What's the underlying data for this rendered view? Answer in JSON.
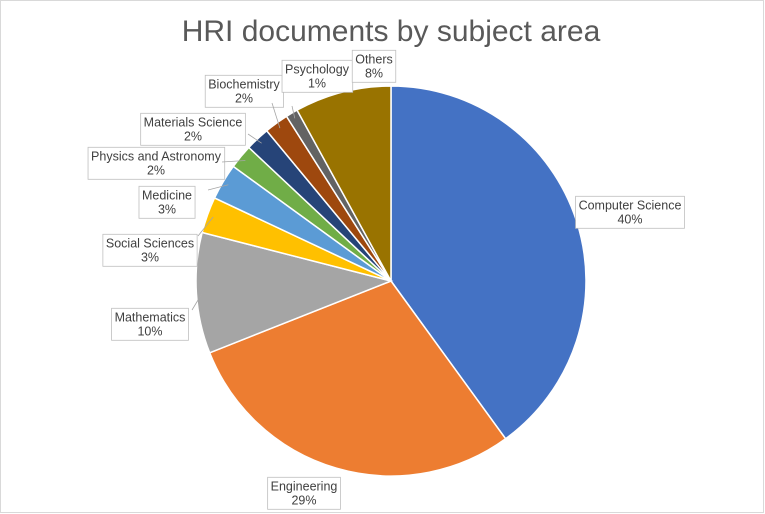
{
  "chart_data": {
    "type": "pie",
    "title": "HRI documents by subject area",
    "categories": [
      "Computer Science",
      "Engineering",
      "Mathematics",
      "Social Sciences",
      "Medicine",
      "Physics and Astronomy",
      "Materials Science",
      "Biochemistry",
      "Psychology",
      "Others"
    ],
    "values": [
      40,
      29,
      10,
      3,
      3,
      2,
      2,
      2,
      1,
      8
    ],
    "value_labels": [
      "40%",
      "29%",
      "10%",
      "3%",
      "3%",
      "2%",
      "2%",
      "2%",
      "1%",
      "8%"
    ],
    "colors": [
      "#4472c4",
      "#ed7d31",
      "#a5a5a5",
      "#ffc000",
      "#5b9bd5",
      "#70ad47",
      "#264478",
      "#9e480e",
      "#636363",
      "#997300"
    ]
  }
}
